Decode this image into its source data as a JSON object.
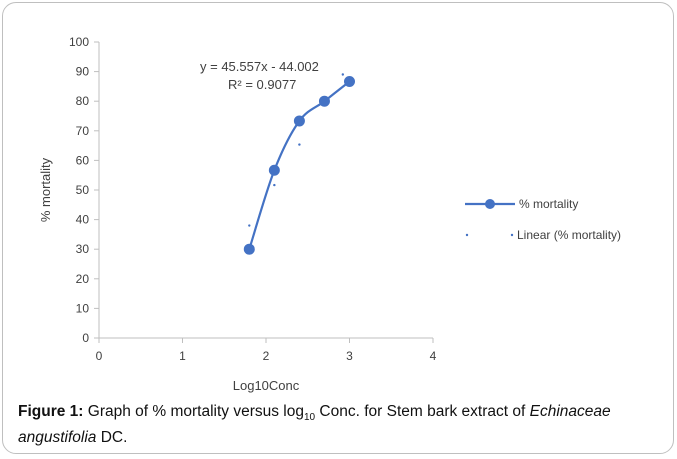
{
  "chart_data": {
    "type": "scatter",
    "x": [
      1.8,
      2.1,
      2.4,
      2.7,
      3.0
    ],
    "series": [
      {
        "name": "% mortality",
        "values": [
          30,
          56.67,
          73.33,
          80,
          86.67
        ],
        "style": "smooth-line-markers",
        "color": "#4472c4"
      },
      {
        "name": "Linear (% mortality)",
        "style": "dotted-trendline",
        "slope": 45.557,
        "intercept": -44.002,
        "color": "#4472c4"
      }
    ],
    "xlabel": "Log10Conc",
    "ylabel": "% mortality",
    "xlim": [
      0,
      4
    ],
    "ylim": [
      0,
      100
    ],
    "xticks": [
      "0",
      "1",
      "2",
      "3",
      "4"
    ],
    "yticks": [
      "0",
      "10",
      "20",
      "30",
      "40",
      "50",
      "60",
      "70",
      "80",
      "90",
      "100"
    ],
    "equation": "y = 45.557x - 44.002",
    "r_squared": "R² = 0.9077",
    "legend_position": "right"
  },
  "caption": {
    "label": "Figure 1:",
    "text_before_log": " Graph of % mortality versus log",
    "log_subscript": "10",
    "text_after_log": " Conc. for Stem bark extract of ",
    "species": "Echinaceae angustifolia",
    "authority": " DC."
  }
}
